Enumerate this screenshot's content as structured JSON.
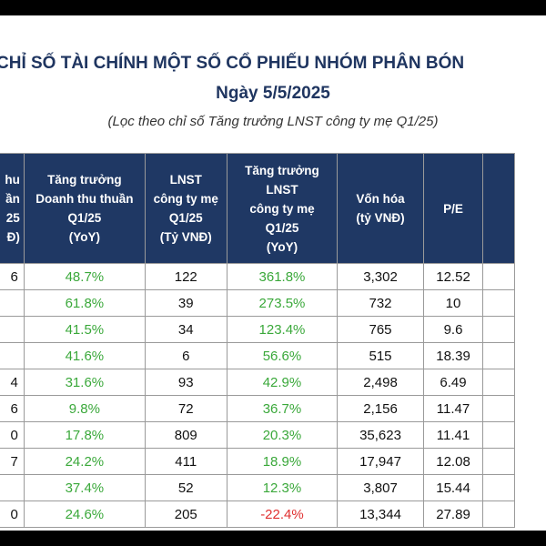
{
  "title": "CHỈ SỐ TÀI CHÍNH MỘT SỐ CỔ PHIẾU NHÓM PHÂN BÓN",
  "date": "Ngày 5/5/2025",
  "note": "(Lọc theo chỉ số Tăng trưởng LNST công ty mẹ Q1/25)",
  "headers": {
    "revenue": "hu\nần\n25\nĐ)",
    "revenue_growth": "Tăng trưởng\nDoanh thu thuần\nQ1/25\n(YoY)",
    "profit": "LNST\ncông ty mẹ\nQ1/25\n(Tỷ VNĐ)",
    "profit_growth": "Tăng trưởng\nLNST\ncông ty mẹ\nQ1/25\n(YoY)",
    "market_cap": "Vốn hóa\n(tỷ VNĐ)",
    "pe": "P/E"
  },
  "rows": [
    {
      "revenue": "6",
      "revenue_growth": "48.7%",
      "profit": "122",
      "profit_growth": "361.8%",
      "market_cap": "3,302",
      "pe": "12.52"
    },
    {
      "revenue": "",
      "revenue_growth": "61.8%",
      "profit": "39",
      "profit_growth": "273.5%",
      "market_cap": "732",
      "pe": "10"
    },
    {
      "revenue": "",
      "revenue_growth": "41.5%",
      "profit": "34",
      "profit_growth": "123.4%",
      "market_cap": "765",
      "pe": "9.6"
    },
    {
      "revenue": "",
      "revenue_growth": "41.6%",
      "profit": "6",
      "profit_growth": "56.6%",
      "market_cap": "515",
      "pe": "18.39"
    },
    {
      "revenue": "4",
      "revenue_growth": "31.6%",
      "profit": "93",
      "profit_growth": "42.9%",
      "market_cap": "2,498",
      "pe": "6.49"
    },
    {
      "revenue": "6",
      "revenue_growth": "9.8%",
      "profit": "72",
      "profit_growth": "36.7%",
      "market_cap": "2,156",
      "pe": "11.47"
    },
    {
      "revenue": "0",
      "revenue_growth": "17.8%",
      "profit": "809",
      "profit_growth": "20.3%",
      "market_cap": "35,623",
      "pe": "11.41"
    },
    {
      "revenue": "7",
      "revenue_growth": "24.2%",
      "profit": "411",
      "profit_growth": "18.9%",
      "market_cap": "17,947",
      "pe": "12.08"
    },
    {
      "revenue": "",
      "revenue_growth": "37.4%",
      "profit": "52",
      "profit_growth": "12.3%",
      "market_cap": "3,807",
      "pe": "15.44"
    },
    {
      "revenue": "0",
      "revenue_growth": "24.6%",
      "profit": "205",
      "profit_growth": "-22.4%",
      "market_cap": "13,344",
      "pe": "27.89"
    }
  ],
  "colors": {
    "header_bg": "#1f3864",
    "positive": "#3aa83a",
    "negative": "#e03030",
    "title": "#1f3560"
  }
}
